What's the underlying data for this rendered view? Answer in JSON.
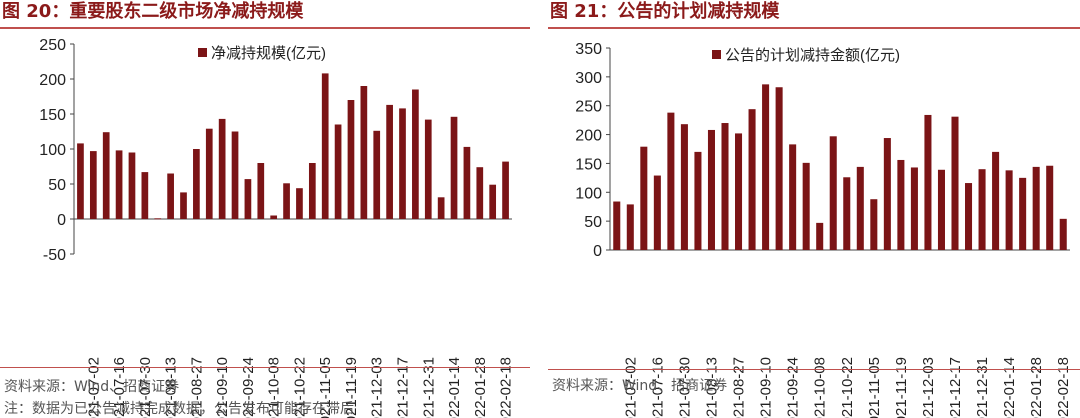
{
  "colors": {
    "bar": "#7b1416",
    "title": "#8b1a1a",
    "rule": "#c0504d"
  },
  "left_panel": {
    "title": "图 20：重要股东二级市场净减持规模",
    "source": "资料来源：Wind、招商证券"
  },
  "right_panel": {
    "title": "图 21：公告的计划减持规模",
    "source": "资料来源：Wind、招商证券"
  },
  "note": "注：数据为已公告减持完成数据，公告发布可能存在滞后",
  "chart_data": [
    {
      "type": "bar",
      "title": "",
      "xlabel": "",
      "ylabel": "",
      "legend": "top-center",
      "ylim": [
        -50,
        250
      ],
      "yticks": [
        -50,
        0,
        50,
        100,
        150,
        200,
        250
      ],
      "x_tick_labels": [
        "2021-07-02",
        "2021-07-16",
        "2021-07-30",
        "2021-08-13",
        "2021-08-27",
        "2021-09-10",
        "2021-09-24",
        "2021-10-08",
        "2021-10-22",
        "2021-11-05",
        "2021-11-19",
        "2021-12-03",
        "2021-12-17",
        "2021-12-31",
        "2022-01-14",
        "2022-01-28",
        "2022-02-18"
      ],
      "series": [
        {
          "name": "净减持规模(亿元)",
          "values": [
            108,
            97,
            124,
            98,
            95,
            67,
            1,
            65,
            38,
            100,
            129,
            143,
            125,
            57,
            80,
            5,
            51,
            44,
            80,
            208,
            135,
            170,
            190,
            126,
            163,
            158,
            185,
            142,
            31,
            146,
            103,
            74,
            49,
            82
          ]
        }
      ]
    },
    {
      "type": "bar",
      "title": "",
      "xlabel": "",
      "ylabel": "",
      "legend": "top-center",
      "ylim": [
        0,
        350
      ],
      "yticks": [
        0,
        50,
        100,
        150,
        200,
        250,
        300,
        350
      ],
      "x_tick_labels": [
        "2021-07-02",
        "2021-07-16",
        "2021-07-30",
        "2021-08-13",
        "2021-08-27",
        "2021-09-10",
        "2021-09-24",
        "2021-10-08",
        "2021-10-22",
        "2021-11-05",
        "2021-11-19",
        "2021-12-03",
        "2021-12-17",
        "2021-12-31",
        "2022-01-14",
        "2022-01-28",
        "2022-02-18"
      ],
      "series": [
        {
          "name": "公告的计划减持金额(亿元)",
          "values": [
            84,
            79,
            179,
            129,
            238,
            218,
            170,
            208,
            220,
            202,
            244,
            287,
            282,
            183,
            151,
            47,
            197,
            126,
            144,
            88,
            194,
            156,
            143,
            234,
            139,
            231,
            116,
            140,
            170,
            138,
            125,
            144,
            146,
            54
          ]
        }
      ]
    }
  ]
}
